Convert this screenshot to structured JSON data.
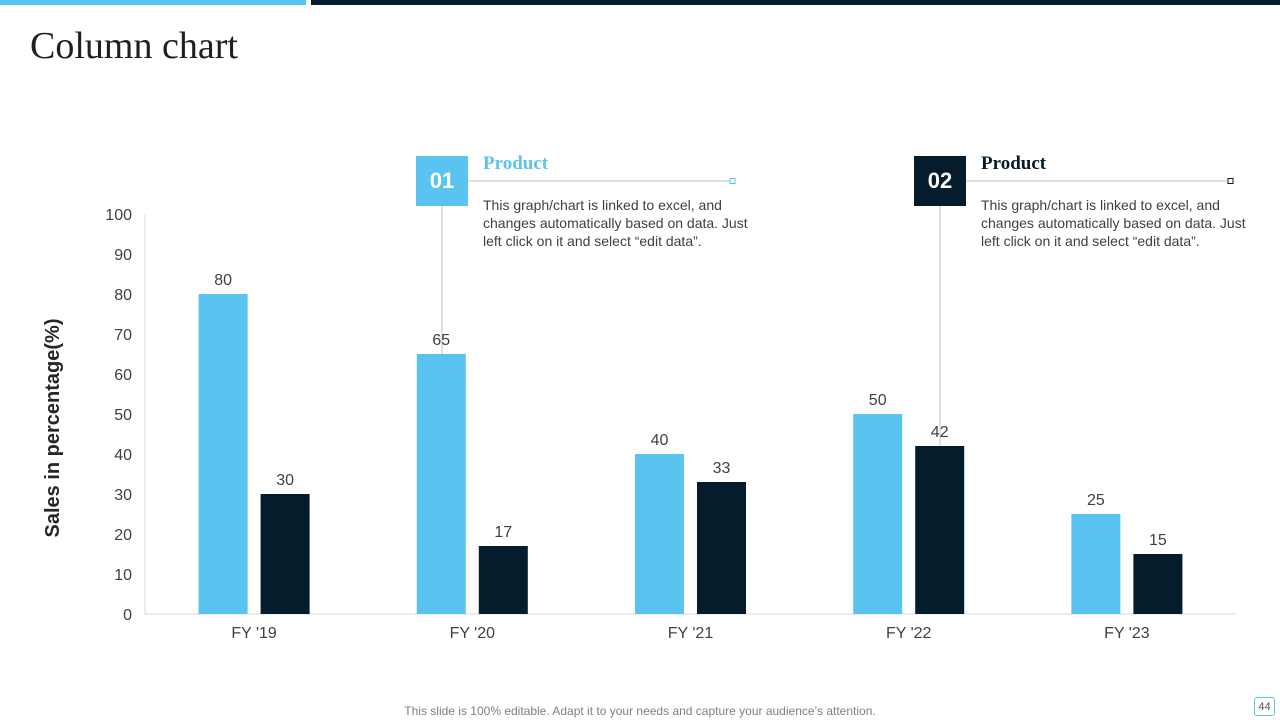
{
  "title": "Column chart",
  "colors": {
    "accent_light": "#5bc3f0",
    "accent_dark": "#041c2c"
  },
  "callouts": [
    {
      "number": "01",
      "heading": "Product",
      "text": "This graph/chart is linked to excel, and changes automatically based on data. Just left click on it and select “edit data”."
    },
    {
      "number": "02",
      "heading": "Product",
      "text": "This graph/chart is linked to excel, and changes automatically based on data. Just left click on it and select “edit data”."
    }
  ],
  "footer": "This slide is 100% editable. Adapt it to your needs and capture your audience’s attention.",
  "page_number": "44",
  "chart_data": {
    "type": "bar",
    "title": "",
    "xlabel": "",
    "ylabel": "Sales in percentage(%)",
    "categories": [
      "FY '19",
      "FY '20",
      "FY '21",
      "FY '22",
      "FY '23"
    ],
    "series": [
      {
        "name": "Product 01",
        "color": "#5bc3f0",
        "values": [
          80,
          65,
          40,
          50,
          25
        ]
      },
      {
        "name": "Product 02",
        "color": "#041c2c",
        "values": [
          30,
          17,
          33,
          42,
          15
        ]
      }
    ],
    "ylim": [
      0,
      100
    ],
    "yticks": [
      0,
      10,
      20,
      30,
      40,
      50,
      60,
      70,
      80,
      90,
      100
    ],
    "grid": false,
    "data_labels": true
  }
}
